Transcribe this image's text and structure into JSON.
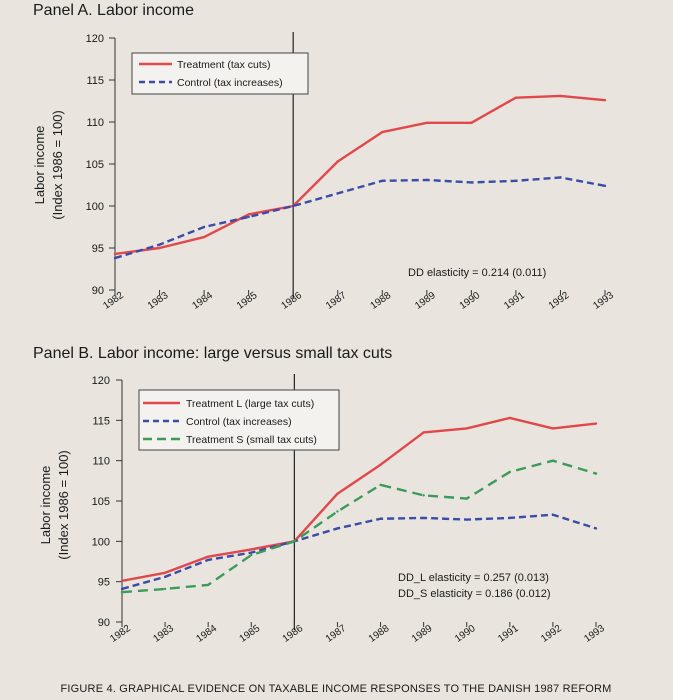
{
  "figure_caption": "FIGURE 4. GRAPHICAL EVIDENCE ON TAXABLE INCOME RESPONSES TO THE DANISH 1987 REFORM",
  "colors": {
    "treatment": "#e0484b",
    "control": "#3a4ba8",
    "small": "#3c9a5a"
  },
  "chart_data": [
    {
      "type": "line",
      "title": "Panel A. Labor income",
      "xlabel": "",
      "ylabel": "Labor income",
      "ylabel2": "(Index 1986 = 100)",
      "ylim": [
        90,
        120
      ],
      "yticks": [
        "90",
        "95",
        "100",
        "105",
        "110",
        "115",
        "120"
      ],
      "x": [
        1982,
        1983,
        1984,
        1985,
        1986,
        1987,
        1988,
        1989,
        1990,
        1991,
        1992,
        1993
      ],
      "xticks": [
        "1982",
        "1983",
        "1984",
        "1985",
        "1986",
        "1987",
        "1988",
        "1989",
        "1990",
        "1991",
        "1992",
        "1993"
      ],
      "reference_year": 1986,
      "series": [
        {
          "name": "Treatment (tax cuts)",
          "style": "solid",
          "color": "#e0484b",
          "values": [
            94.3,
            95.0,
            96.3,
            99.0,
            100.0,
            105.3,
            108.8,
            109.9,
            109.9,
            112.9,
            113.1,
            112.6
          ]
        },
        {
          "name": "Control (tax increases)",
          "style": "dashed",
          "color": "#3a4ba8",
          "values": [
            93.8,
            95.4,
            97.5,
            98.7,
            100.0,
            101.5,
            103.0,
            103.1,
            102.8,
            103.0,
            103.4,
            102.4
          ]
        }
      ],
      "annotations": [
        "DD elasticity = 0.214 (0.011)"
      ]
    },
    {
      "type": "line",
      "title": "Panel B. Labor income: large versus small tax cuts",
      "xlabel": "",
      "ylabel": "Labor income",
      "ylabel2": "(Index 1986 = 100)",
      "ylim": [
        90,
        120
      ],
      "yticks": [
        "90",
        "95",
        "100",
        "105",
        "110",
        "115",
        "120"
      ],
      "x": [
        1982,
        1983,
        1984,
        1985,
        1986,
        1987,
        1988,
        1989,
        1990,
        1991,
        1992,
        1993
      ],
      "xticks": [
        "1982",
        "1983",
        "1984",
        "1985",
        "1986",
        "1987",
        "1988",
        "1989",
        "1990",
        "1991",
        "1992",
        "1993"
      ],
      "reference_year": 1986,
      "series": [
        {
          "name": "Treatment L (large tax cuts)",
          "style": "solid",
          "color": "#e0484b",
          "values": [
            95.1,
            96.1,
            98.1,
            99.0,
            100.0,
            105.9,
            109.5,
            113.5,
            114.0,
            115.3,
            114.0,
            114.6
          ]
        },
        {
          "name": "Control (tax increases)",
          "style": "dashed",
          "color": "#3a4ba8",
          "values": [
            94.1,
            95.6,
            97.7,
            98.6,
            100.0,
            101.6,
            102.8,
            102.9,
            102.7,
            102.9,
            103.3,
            101.6
          ]
        },
        {
          "name": "Treatment S (small tax cuts)",
          "style": "dashed",
          "color": "#3c9a5a",
          "values": [
            93.7,
            94.1,
            94.6,
            98.3,
            100.0,
            103.7,
            107.0,
            105.7,
            105.3,
            108.6,
            110.0,
            108.4
          ]
        }
      ],
      "annotations": [
        "DD_L elasticity = 0.257 (0.013)",
        "DD_S elasticity = 0.186 (0.012)"
      ]
    }
  ]
}
